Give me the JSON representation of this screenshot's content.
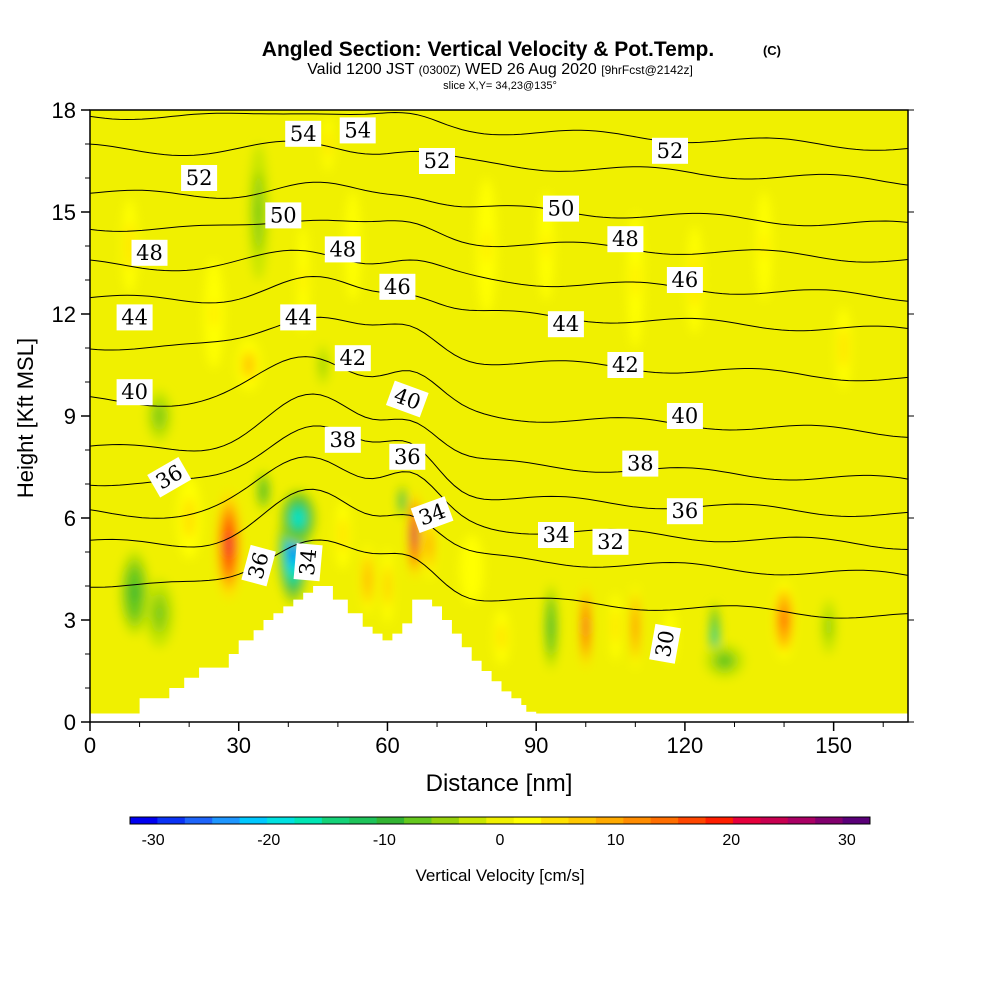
{
  "chart_data": {
    "type": "heatmap",
    "title": "Angled Section: Vertical Velocity & Pot.Temp.",
    "title_mark": "(C)",
    "subtitle": {
      "valid": "Valid 1200 JST",
      "utc": "(0300Z)",
      "date": "WED 26 Aug 2020",
      "forecast": "[9hrFcst@2142z]"
    },
    "slice_label": "slice X,Y= 34,23@135°",
    "xlabel": "Distance [nm]",
    "ylabel": "Height [Kft MSL]",
    "xlim": [
      0,
      165
    ],
    "ylim": [
      0,
      18
    ],
    "x_ticks": [
      0,
      30,
      60,
      90,
      120,
      150
    ],
    "y_ticks": [
      0,
      3,
      6,
      9,
      12,
      15,
      18
    ],
    "colorbar": {
      "label": "Vertical Velocity [cm/s]",
      "range": [
        -32,
        32
      ],
      "ticks": [
        -30,
        -20,
        -10,
        0,
        10,
        20,
        30
      ],
      "colors": [
        "#0000f0",
        "#0a32f5",
        "#1e64fa",
        "#1e96ff",
        "#00c8ff",
        "#00e1e1",
        "#00e6b4",
        "#14d278",
        "#1ec35a",
        "#32b432",
        "#64c81e",
        "#96d20a",
        "#c8e600",
        "#f0f000",
        "#ffff00",
        "#ffe100",
        "#ffc800",
        "#ffaa00",
        "#ff8c00",
        "#ff6e00",
        "#ff4600",
        "#ff1e00",
        "#e6003c",
        "#c80050",
        "#aa0064",
        "#82006e",
        "#5a0078"
      ]
    },
    "background_level": 0,
    "vertical_velocity_cells": [
      {
        "x": 9,
        "z": 3.8,
        "w": 6,
        "h": 2.5,
        "v": -10
      },
      {
        "x": 14,
        "z": 3.2,
        "w": 6,
        "h": 2.0,
        "v": -7
      },
      {
        "x": 20,
        "z": 6.0,
        "w": 6,
        "h": 3.0,
        "v": 5
      },
      {
        "x": 28,
        "z": 5.2,
        "w": 5,
        "h": 3.2,
        "v": 22
      },
      {
        "x": 35,
        "z": 6.8,
        "w": 3,
        "h": 1.2,
        "v": -10
      },
      {
        "x": 41,
        "z": 5.0,
        "w": 6,
        "h": 3.0,
        "v": -28
      },
      {
        "x": 42,
        "z": 6.0,
        "w": 7,
        "h": 1.6,
        "v": -20
      },
      {
        "x": 47,
        "z": 10.5,
        "w": 3,
        "h": 1.5,
        "v": -5
      },
      {
        "x": 51,
        "z": 5.5,
        "w": 4,
        "h": 2.5,
        "v": 5
      },
      {
        "x": 56,
        "z": 4.2,
        "w": 3,
        "h": 2.0,
        "v": 10
      },
      {
        "x": 60,
        "z": 4.0,
        "w": 2.5,
        "h": 2.2,
        "v": 8
      },
      {
        "x": 63,
        "z": 6.5,
        "w": 2,
        "h": 1.0,
        "v": -14
      },
      {
        "x": 65.5,
        "z": 5.5,
        "w": 2.5,
        "h": 2.6,
        "v": 28
      },
      {
        "x": 68.5,
        "z": 5.2,
        "w": 2.5,
        "h": 2.0,
        "v": 12
      },
      {
        "x": 77,
        "z": 4.5,
        "w": 6,
        "h": 2.5,
        "v": 3
      },
      {
        "x": 83,
        "z": 2.5,
        "w": 4,
        "h": 2.0,
        "v": 5
      },
      {
        "x": 93,
        "z": 2.8,
        "w": 3,
        "h": 2.5,
        "v": -10
      },
      {
        "x": 100,
        "z": 2.8,
        "w": 2,
        "h": 2.5,
        "v": 22
      },
      {
        "x": 106,
        "z": 2.8,
        "w": 3,
        "h": 2.5,
        "v": 5
      },
      {
        "x": 110,
        "z": 2.8,
        "w": 2,
        "h": 2.5,
        "v": 15
      },
      {
        "x": 117,
        "z": 2.5,
        "w": 3,
        "h": 2.0,
        "v": 3
      },
      {
        "x": 126,
        "z": 2.5,
        "w": 2,
        "h": 2.0,
        "v": -19
      },
      {
        "x": 128,
        "z": 1.8,
        "w": 8,
        "h": 1.0,
        "v": -8
      },
      {
        "x": 140,
        "z": 3.0,
        "w": 4.5,
        "h": 2.3,
        "v": 16
      },
      {
        "x": 149,
        "z": 2.8,
        "w": 4,
        "h": 2.0,
        "v": -5
      },
      {
        "x": 8,
        "z": 14.0,
        "w": 4,
        "h": 3.5,
        "v": 5
      },
      {
        "x": 25,
        "z": 12.0,
        "w": 5,
        "h": 4.0,
        "v": 4
      },
      {
        "x": 34,
        "z": 15.0,
        "w": 4,
        "h": 4.0,
        "v": -6
      },
      {
        "x": 43,
        "z": 13.0,
        "w": 3,
        "h": 4.0,
        "v": 4
      },
      {
        "x": 48,
        "z": 17.0,
        "w": 3,
        "h": 2.0,
        "v": 5
      },
      {
        "x": 53,
        "z": 14.0,
        "w": 4,
        "h": 4.0,
        "v": 4
      },
      {
        "x": 80,
        "z": 14.0,
        "w": 5,
        "h": 5.0,
        "v": 4
      },
      {
        "x": 92,
        "z": 14.0,
        "w": 4,
        "h": 4.0,
        "v": 4
      },
      {
        "x": 110,
        "z": 13.0,
        "w": 4,
        "h": 5.0,
        "v": 4
      },
      {
        "x": 122,
        "z": 13.0,
        "w": 4,
        "h": 4.0,
        "v": 5
      },
      {
        "x": 136,
        "z": 14.0,
        "w": 4,
        "h": 4.0,
        "v": 4
      },
      {
        "x": 152,
        "z": 11.0,
        "w": 4,
        "h": 3.0,
        "v": 5
      },
      {
        "x": 14,
        "z": 9.0,
        "w": 5,
        "h": 1.5,
        "v": -7
      },
      {
        "x": 32,
        "z": 10.5,
        "w": 5,
        "h": 1.5,
        "v": 8
      }
    ],
    "theta_isolines": [
      {
        "level": 30,
        "z0": 3.6,
        "hill": 0.2
      },
      {
        "level": 32,
        "z0": 4.8,
        "hill": 0.22
      },
      {
        "level": 34,
        "z0": 5.7,
        "hill": 0.25
      },
      {
        "level": 36,
        "z0": 6.6,
        "hill": 0.25
      },
      {
        "level": 38,
        "z0": 7.6,
        "hill": 0.22
      },
      {
        "level": 40,
        "z0": 9.0,
        "hill": 0.2
      },
      {
        "level": 42,
        "z0": 10.6,
        "hill": 0.15
      },
      {
        "level": 44,
        "z0": 12.0,
        "hill": 0.1
      },
      {
        "level": 46,
        "z0": 13.0,
        "hill": 0.08
      },
      {
        "level": 48,
        "z0": 14.1,
        "hill": 0.07
      },
      {
        "level": 50,
        "z0": 15.1,
        "hill": 0.06
      },
      {
        "level": 52,
        "z0": 16.4,
        "hill": 0.05
      },
      {
        "level": 54,
        "z0": 17.4,
        "hill": 0.05
      }
    ],
    "contour_labels": [
      {
        "text": "54",
        "x": 43,
        "z": 17.3
      },
      {
        "text": "54",
        "x": 54,
        "z": 17.4
      },
      {
        "text": "52",
        "x": 22,
        "z": 16.0
      },
      {
        "text": "52",
        "x": 70,
        "z": 16.5
      },
      {
        "text": "52",
        "x": 117,
        "z": 16.8
      },
      {
        "text": "50",
        "x": 39,
        "z": 14.9
      },
      {
        "text": "50",
        "x": 95,
        "z": 15.1
      },
      {
        "text": "48",
        "x": 12,
        "z": 13.8
      },
      {
        "text": "48",
        "x": 51,
        "z": 13.9
      },
      {
        "text": "48",
        "x": 108,
        "z": 14.2
      },
      {
        "text": "46",
        "x": 62,
        "z": 12.8
      },
      {
        "text": "46",
        "x": 120,
        "z": 13.0
      },
      {
        "text": "44",
        "x": 9,
        "z": 11.9
      },
      {
        "text": "44",
        "x": 42,
        "z": 11.9
      },
      {
        "text": "44",
        "x": 96,
        "z": 11.7
      },
      {
        "text": "42",
        "x": 53,
        "z": 10.7
      },
      {
        "text": "42",
        "x": 108,
        "z": 10.5
      },
      {
        "text": "40",
        "x": 9,
        "z": 9.7
      },
      {
        "text": "40",
        "x": 64,
        "z": 9.5,
        "rot": 20
      },
      {
        "text": "40",
        "x": 120,
        "z": 9.0
      },
      {
        "text": "38",
        "x": 51,
        "z": 8.3
      },
      {
        "text": "38",
        "x": 111,
        "z": 7.6
      },
      {
        "text": "36",
        "x": 16,
        "z": 7.2,
        "rot": -30
      },
      {
        "text": "36",
        "x": 64,
        "z": 7.8
      },
      {
        "text": "36",
        "x": 120,
        "z": 6.2
      },
      {
        "text": "36",
        "x": 34,
        "z": 4.6,
        "rot": -75
      },
      {
        "text": "34",
        "x": 44,
        "z": 4.7,
        "rot": -85
      },
      {
        "text": "34",
        "x": 69,
        "z": 6.1,
        "rot": -20
      },
      {
        "text": "34",
        "x": 94,
        "z": 5.5
      },
      {
        "text": "32",
        "x": 105,
        "z": 5.3
      },
      {
        "text": "30",
        "x": 116,
        "z": 2.3,
        "rot": -80
      }
    ],
    "terrain_profile": [
      [
        10,
        0.7
      ],
      [
        16,
        1.0
      ],
      [
        19,
        1.3
      ],
      [
        22,
        1.6
      ],
      [
        28,
        2.0
      ],
      [
        30,
        2.4
      ],
      [
        33,
        2.7
      ],
      [
        35,
        3.0
      ],
      [
        37,
        3.2
      ],
      [
        39,
        3.4
      ],
      [
        41,
        3.6
      ],
      [
        43,
        3.8
      ],
      [
        45,
        4.0
      ],
      [
        49,
        3.6
      ],
      [
        52,
        3.2
      ],
      [
        55,
        2.8
      ],
      [
        57,
        2.6
      ],
      [
        59,
        2.4
      ],
      [
        61,
        2.6
      ],
      [
        63,
        2.9
      ],
      [
        65,
        3.6
      ],
      [
        69,
        3.4
      ],
      [
        71,
        3.0
      ],
      [
        73,
        2.6
      ],
      [
        75,
        2.2
      ],
      [
        77,
        1.8
      ],
      [
        79,
        1.5
      ],
      [
        81,
        1.2
      ],
      [
        83,
        0.9
      ],
      [
        85,
        0.7
      ],
      [
        87,
        0.5
      ],
      [
        88,
        0.3
      ]
    ]
  }
}
